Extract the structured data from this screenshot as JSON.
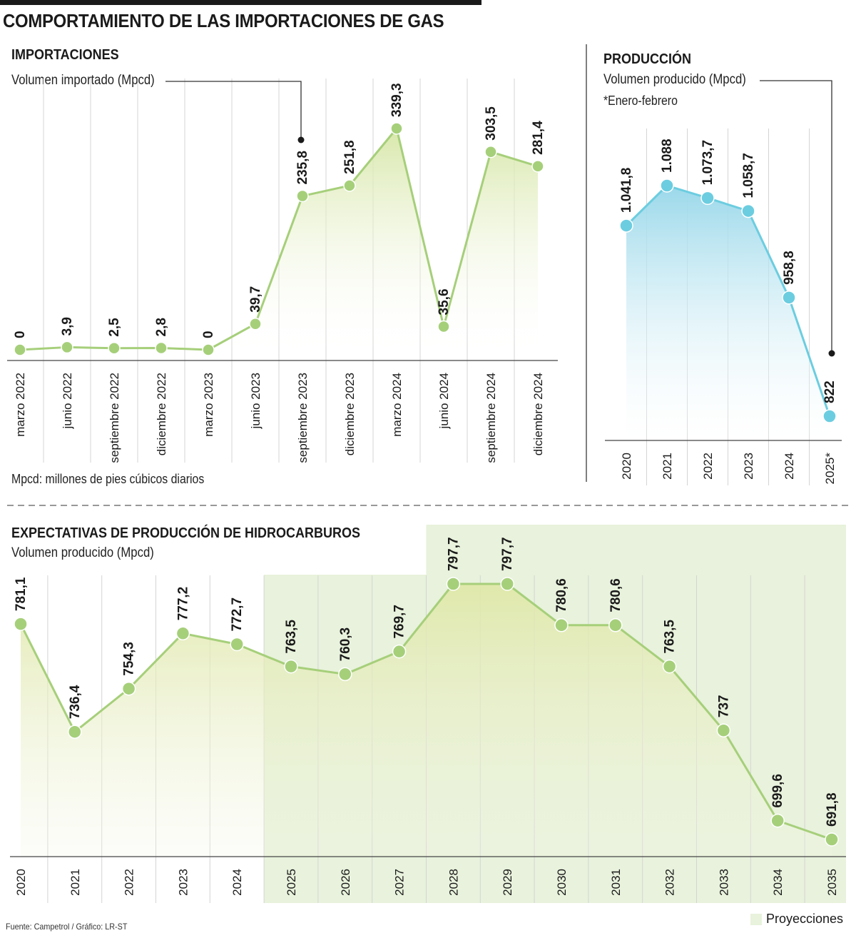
{
  "title": "COMPORTAMIENTO DE LAS IMPORTACIONES DE GAS",
  "imports": {
    "section_title": "IMPORTACIONES",
    "subtitle": "Volumen importado (Mpcd)",
    "footnote": "Mpcd: millones de pies cúbicos diarios"
  },
  "production": {
    "section_title": "PRODUCCIÓN",
    "subtitle": "Volumen producido (Mpcd)",
    "note": "*Enero-febrero"
  },
  "expectations": {
    "section_title": "EXPECTATIVAS DE PRODUCCIÓN DE HIDROCARBUROS",
    "subtitle": "Volumen producido (Mpcd)"
  },
  "legend": {
    "label": "Proyecciones",
    "color": "#e8f2dc"
  },
  "source": "Fuente: Campetrol / Gráfico: LR-ST",
  "colors": {
    "green_line": "#a6cf7a",
    "blue_line": "#6ccde0",
    "grid": "#d4d4d4",
    "projection_band": "#e8f2dc"
  },
  "chart_data": [
    {
      "type": "area",
      "title": "IMPORTACIONES",
      "ylabel": "Volumen importado (Mpcd)",
      "categories": [
        "marzo 2022",
        "junio 2022",
        "septiembre 2022",
        "diciembre 2022",
        "marzo 2023",
        "junio 2023",
        "septiembre 2023",
        "diciembre 2023",
        "marzo 2024",
        "junio 2024",
        "septiembre 2024",
        "diciembre 2024"
      ],
      "values": [
        0,
        3.9,
        2.5,
        2.8,
        0,
        39.7,
        235.8,
        251.8,
        339.3,
        35.6,
        303.5,
        281.4
      ],
      "labels": [
        "0",
        "3,9",
        "2,5",
        "2,8",
        "0",
        "39,7",
        "235,8",
        "251,8",
        "339,3",
        "35,6",
        "303,5",
        "281,4"
      ],
      "ylim": [
        0,
        339.3
      ],
      "grid": true
    },
    {
      "type": "area",
      "title": "PRODUCCIÓN",
      "ylabel": "Volumen producido (Mpcd)",
      "categories": [
        "2020",
        "2021",
        "2022",
        "2023",
        "2024",
        "2025*"
      ],
      "values": [
        1041.8,
        1088,
        1073.7,
        1058.7,
        958.8,
        822
      ],
      "labels": [
        "1.041,8",
        "1.088",
        "1.073,7",
        "1.058,7",
        "958,8",
        "822"
      ],
      "ylim": [
        822,
        1088
      ],
      "grid": true
    },
    {
      "type": "area",
      "title": "EXPECTATIVAS DE PRODUCCIÓN DE HIDROCARBUROS",
      "ylabel": "Volumen producido (Mpcd)",
      "categories": [
        "2020",
        "2021",
        "2022",
        "2023",
        "2024",
        "2025",
        "2026",
        "2027",
        "2028",
        "2029",
        "2030",
        "2031",
        "2032",
        "2033",
        "2034",
        "2035"
      ],
      "values": [
        781.1,
        736.4,
        754.3,
        777.2,
        772.7,
        763.5,
        760.3,
        769.7,
        797.7,
        797.7,
        780.6,
        780.6,
        763.5,
        737,
        699.6,
        691.8
      ],
      "labels": [
        "781,1",
        "736,4",
        "754,3",
        "777,2",
        "772,7",
        "763,5",
        "760,3",
        "769,7",
        "797,7",
        "797,7",
        "780,6",
        "780,6",
        "763,5",
        "737",
        "699,6",
        "691,8"
      ],
      "ylim": [
        691.8,
        797.7
      ],
      "projection_start": "2025",
      "grid": true
    }
  ]
}
